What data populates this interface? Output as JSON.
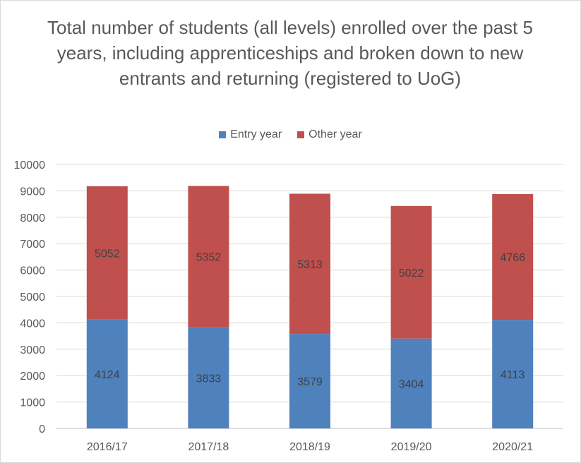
{
  "chart_data": {
    "type": "bar",
    "stacked": true,
    "title": "Total number of students (all levels) enrolled over the past 5 years, including apprenticeships and broken down to new entrants and returning (registered to UoG)",
    "xlabel": "",
    "ylabel": "",
    "categories": [
      "2016/17",
      "2017/18",
      "2018/19",
      "2019/20",
      "2020/21"
    ],
    "series": [
      {
        "name": "Entry year",
        "values": [
          4124,
          3833,
          3579,
          3404,
          4113
        ],
        "color": "#4f81bd"
      },
      {
        "name": "Other year",
        "values": [
          5052,
          5352,
          5313,
          5022,
          4766
        ],
        "color": "#c0504d"
      }
    ],
    "ylim": [
      0,
      10000
    ],
    "yticks": [
      0,
      1000,
      2000,
      3000,
      4000,
      5000,
      6000,
      7000,
      8000,
      9000,
      10000
    ],
    "grid": true,
    "legend_position": "top",
    "data_labels": true
  }
}
